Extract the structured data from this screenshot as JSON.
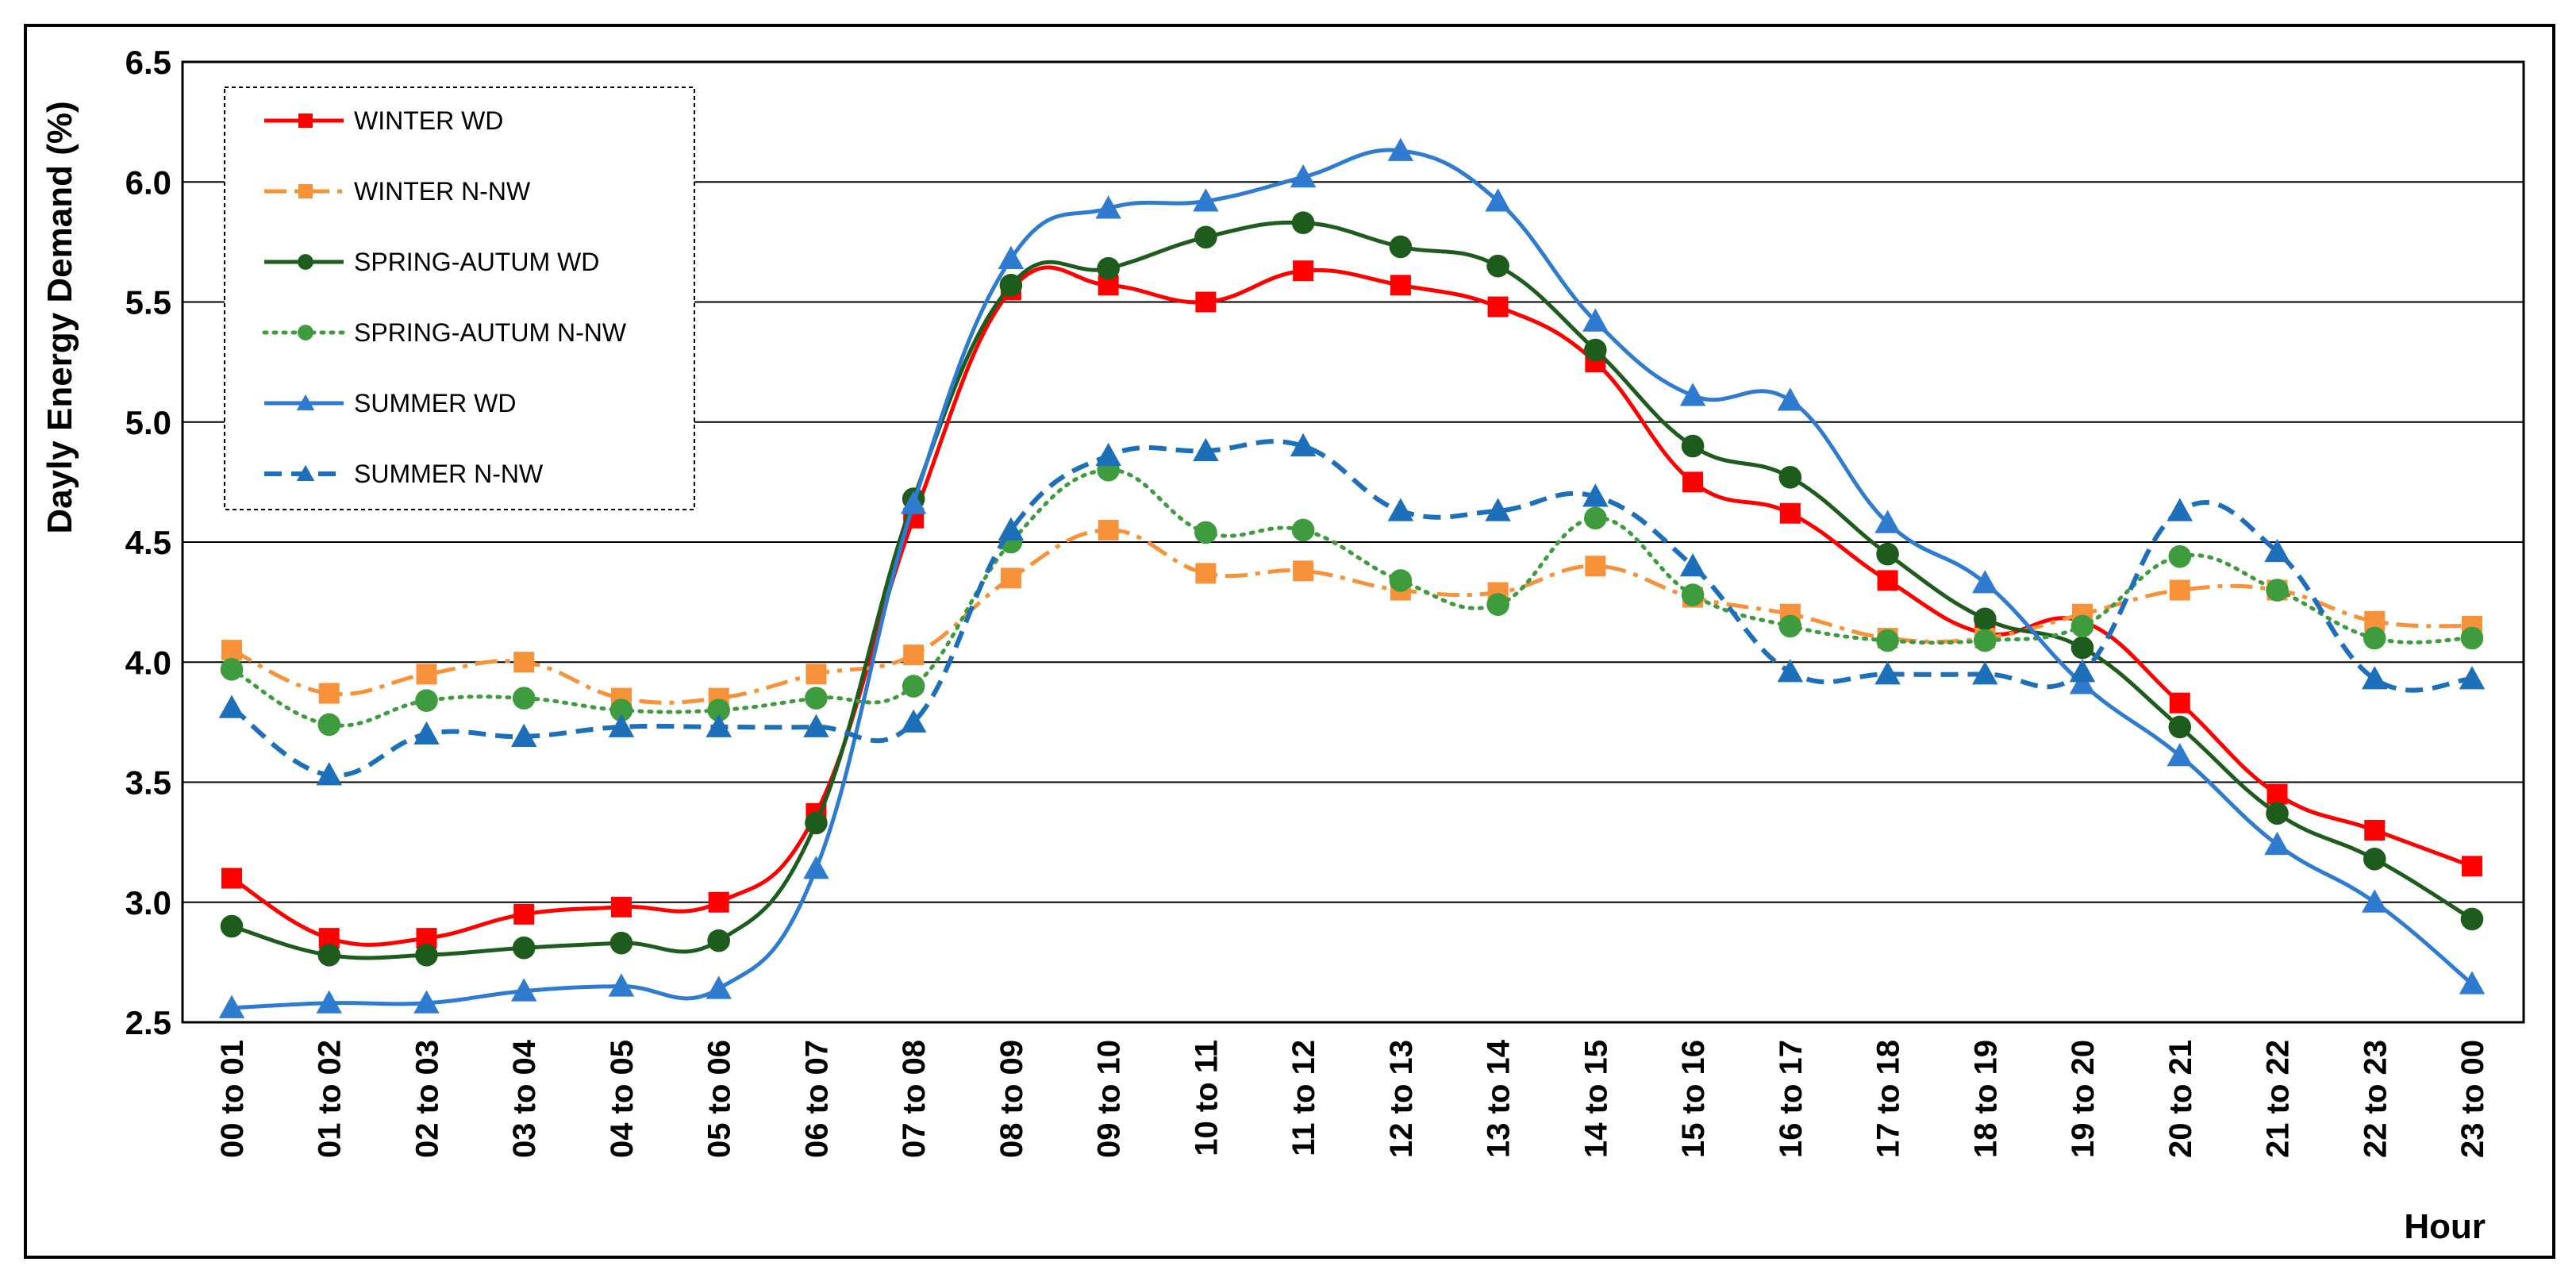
{
  "chart_data": {
    "type": "line",
    "title": "",
    "xlabel": "Hour",
    "ylabel": "Dayly Energy Demand (%)",
    "ylim": [
      2.5,
      6.5
    ],
    "yticks": [
      "2.5",
      "3.0",
      "3.5",
      "4.0",
      "4.5",
      "5.0",
      "5.5",
      "6.0",
      "6.5"
    ],
    "grid": "horizontal",
    "legend_position": "top-left",
    "categories": [
      "00 to 01",
      "01 to 02",
      "02 to 03",
      "03 to 04",
      "04 to 05",
      "05 to 06",
      "06 to 07",
      "07 to 08",
      "08 to 09",
      "09 to 10",
      "10 to 11",
      "11 to 12",
      "12 to 13",
      "13 to 14",
      "14 to 15",
      "15 to 16",
      "16 to 17",
      "17 to 18",
      "18 to 19",
      "19 to 20",
      "20 to 21",
      "21 to 22",
      "22 to 23",
      "23 to 00"
    ],
    "series": [
      {
        "name": "WINTER WD",
        "color": "#FF0000",
        "marker": "square",
        "dash": "solid",
        "values": [
          3.1,
          2.85,
          2.85,
          2.95,
          2.98,
          3.0,
          3.37,
          4.6,
          5.55,
          5.57,
          5.5,
          5.63,
          5.57,
          5.48,
          5.25,
          4.75,
          4.62,
          4.34,
          4.12,
          4.17,
          3.83,
          3.45,
          3.3,
          3.15
        ]
      },
      {
        "name": "WINTER N-NW",
        "color": "#F7923A",
        "marker": "square",
        "dash": "dashdot",
        "values": [
          4.05,
          3.87,
          3.95,
          4.0,
          3.85,
          3.85,
          3.95,
          4.03,
          4.35,
          4.55,
          4.37,
          4.38,
          4.3,
          4.29,
          4.4,
          4.27,
          4.2,
          4.1,
          4.1,
          4.2,
          4.3,
          4.3,
          4.17,
          4.15
        ]
      },
      {
        "name": "SPRING-AUTUM WD",
        "color": "#1E5C1E",
        "marker": "circle",
        "dash": "solid",
        "values": [
          2.9,
          2.78,
          2.78,
          2.81,
          2.83,
          2.84,
          3.33,
          4.68,
          5.57,
          5.64,
          5.77,
          5.83,
          5.73,
          5.65,
          5.3,
          4.9,
          4.77,
          4.45,
          4.18,
          4.06,
          3.73,
          3.37,
          3.18,
          2.93
        ]
      },
      {
        "name": "SPRING-AUTUM N-NW",
        "color": "#3E9B3E",
        "marker": "circle",
        "dash": "dotted",
        "values": [
          3.97,
          3.74,
          3.84,
          3.85,
          3.8,
          3.8,
          3.85,
          3.9,
          4.5,
          4.8,
          4.54,
          4.55,
          4.34,
          4.24,
          4.6,
          4.28,
          4.15,
          4.09,
          4.09,
          4.15,
          4.44,
          4.3,
          4.1,
          4.1
        ]
      },
      {
        "name": "SUMMER WD",
        "color": "#2E7BCF",
        "marker": "triangle",
        "dash": "solid",
        "values": [
          2.56,
          2.58,
          2.58,
          2.63,
          2.65,
          2.64,
          3.14,
          4.66,
          5.68,
          5.89,
          5.92,
          6.02,
          6.13,
          5.92,
          5.42,
          5.11,
          5.09,
          4.58,
          4.33,
          3.91,
          3.61,
          3.24,
          3.0,
          2.66
        ]
      },
      {
        "name": "SUMMER N-NW",
        "color": "#1C6FB8",
        "marker": "triangle",
        "dash": "dashed",
        "values": [
          3.81,
          3.53,
          3.7,
          3.69,
          3.73,
          3.73,
          3.73,
          3.75,
          4.55,
          4.86,
          4.88,
          4.9,
          4.63,
          4.63,
          4.69,
          4.4,
          3.96,
          3.95,
          3.95,
          3.96,
          4.63,
          4.46,
          3.93,
          3.93
        ]
      }
    ]
  }
}
